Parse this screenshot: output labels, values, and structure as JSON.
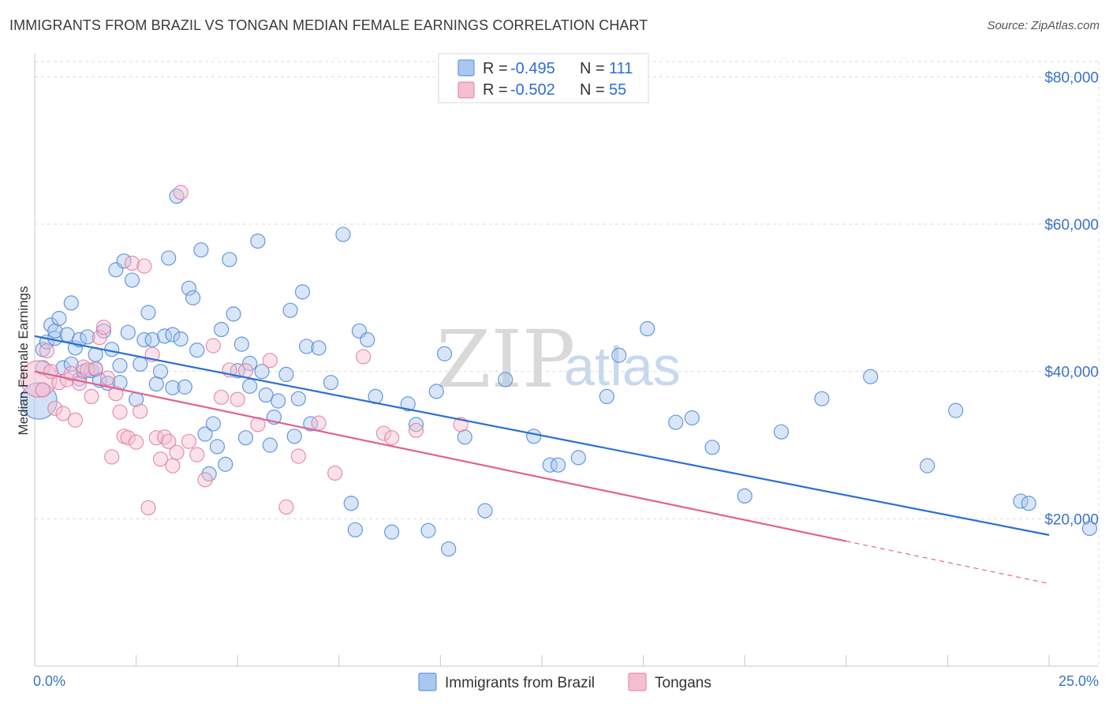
{
  "title": "IMMIGRANTS FROM BRAZIL VS TONGAN MEDIAN FEMALE EARNINGS CORRELATION CHART",
  "source": "Source: ZipAtlas.com",
  "watermark": {
    "part1": "ZIP",
    "part2": "atlas"
  },
  "legend": {
    "r_label": "R =",
    "n_label": "N =",
    "series": [
      {
        "r": "-0.495",
        "n": "111"
      },
      {
        "r": "-0.502",
        "n": "55"
      }
    ]
  },
  "colors": {
    "brazil_fill": "#a9c8f0",
    "brazil_stroke": "#4f87d6",
    "brazil_line": "#2a70d2",
    "tongan_fill": "#f6bfd0",
    "tongan_stroke": "#e27c9f",
    "tongan_line": "#e0628f"
  },
  "chart_data": {
    "type": "scatter",
    "title": "IMMIGRANTS FROM BRAZIL VS TONGAN MEDIAN FEMALE EARNINGS CORRELATION CHART",
    "xlabel": "",
    "ylabel": "Median Female Earnings",
    "xlim": [
      0,
      25
    ],
    "ylim": [
      0,
      84000
    ],
    "x_tick_labels": {
      "left": "0.0%",
      "right": "25.0%"
    },
    "y_ticks": [
      {
        "value": 20000,
        "label": "$20,000"
      },
      {
        "value": 40000,
        "label": "$40,000"
      },
      {
        "value": 60000,
        "label": "$60,000"
      },
      {
        "value": 80000,
        "label": "$80,000"
      }
    ],
    "series": [
      {
        "name": "Immigrants from Brazil",
        "r": -0.495,
        "n": 111,
        "trend": {
          "x0": 0,
          "y0": 44800,
          "x1": 25,
          "y1": 17800,
          "dashed_from": null
        },
        "points": [
          [
            0.1,
            36000
          ],
          [
            0.2,
            40500
          ],
          [
            0.2,
            43000
          ],
          [
            0.3,
            44000
          ],
          [
            0.4,
            46300
          ],
          [
            0.5,
            44500
          ],
          [
            0.5,
            45500
          ],
          [
            0.6,
            47200
          ],
          [
            0.7,
            40500
          ],
          [
            0.8,
            45000
          ],
          [
            0.9,
            41000
          ],
          [
            0.9,
            49300
          ],
          [
            1.0,
            43200
          ],
          [
            1.1,
            44300
          ],
          [
            1.1,
            39000
          ],
          [
            1.2,
            40000
          ],
          [
            1.3,
            44700
          ],
          [
            1.4,
            40100
          ],
          [
            1.5,
            40300
          ],
          [
            1.5,
            42300
          ],
          [
            1.6,
            38800
          ],
          [
            1.7,
            45500
          ],
          [
            1.8,
            38400
          ],
          [
            1.9,
            43000
          ],
          [
            2.0,
            53800
          ],
          [
            2.1,
            40800
          ],
          [
            2.1,
            38500
          ],
          [
            2.2,
            55000
          ],
          [
            2.3,
            45300
          ],
          [
            2.4,
            52400
          ],
          [
            2.5,
            36200
          ],
          [
            2.6,
            41000
          ],
          [
            2.7,
            44300
          ],
          [
            2.8,
            48000
          ],
          [
            2.9,
            44300
          ],
          [
            3.0,
            38300
          ],
          [
            3.1,
            40000
          ],
          [
            3.2,
            44800
          ],
          [
            3.3,
            55400
          ],
          [
            3.4,
            45000
          ],
          [
            3.4,
            37800
          ],
          [
            3.5,
            63800
          ],
          [
            3.6,
            44400
          ],
          [
            3.7,
            37900
          ],
          [
            3.8,
            51300
          ],
          [
            3.9,
            50000
          ],
          [
            4.0,
            42900
          ],
          [
            4.1,
            56500
          ],
          [
            4.2,
            31500
          ],
          [
            4.3,
            26100
          ],
          [
            4.4,
            32900
          ],
          [
            4.5,
            29800
          ],
          [
            4.6,
            45700
          ],
          [
            4.7,
            27400
          ],
          [
            4.8,
            55200
          ],
          [
            4.9,
            47800
          ],
          [
            5.0,
            40100
          ],
          [
            5.1,
            43700
          ],
          [
            5.2,
            31000
          ],
          [
            5.3,
            38000
          ],
          [
            5.3,
            41100
          ],
          [
            5.5,
            57700
          ],
          [
            5.6,
            40000
          ],
          [
            5.7,
            36800
          ],
          [
            5.8,
            30000
          ],
          [
            5.9,
            33800
          ],
          [
            6.0,
            36000
          ],
          [
            6.2,
            39600
          ],
          [
            6.3,
            48300
          ],
          [
            6.4,
            31200
          ],
          [
            6.5,
            36300
          ],
          [
            6.6,
            50800
          ],
          [
            6.7,
            43400
          ],
          [
            6.8,
            32900
          ],
          [
            7.0,
            43200
          ],
          [
            7.3,
            38500
          ],
          [
            7.6,
            58600
          ],
          [
            7.8,
            22100
          ],
          [
            7.9,
            18500
          ],
          [
            8.0,
            45500
          ],
          [
            8.2,
            44300
          ],
          [
            8.4,
            36600
          ],
          [
            8.8,
            18200
          ],
          [
            9.2,
            35600
          ],
          [
            9.4,
            32800
          ],
          [
            9.7,
            18400
          ],
          [
            9.9,
            37300
          ],
          [
            10.1,
            42400
          ],
          [
            10.2,
            15900
          ],
          [
            10.6,
            31100
          ],
          [
            11.1,
            21100
          ],
          [
            11.6,
            38900
          ],
          [
            12.3,
            31200
          ],
          [
            12.7,
            27300
          ],
          [
            12.9,
            27300
          ],
          [
            13.4,
            28300
          ],
          [
            14.1,
            36600
          ],
          [
            14.4,
            42200
          ],
          [
            15.1,
            45800
          ],
          [
            15.8,
            33100
          ],
          [
            16.2,
            33700
          ],
          [
            16.7,
            29700
          ],
          [
            17.5,
            23100
          ],
          [
            18.4,
            31800
          ],
          [
            19.4,
            36300
          ],
          [
            20.6,
            39300
          ],
          [
            22.0,
            27200
          ],
          [
            22.7,
            34700
          ],
          [
            24.3,
            22400
          ],
          [
            26.0,
            18700
          ],
          [
            24.5,
            22100
          ]
        ]
      },
      {
        "name": "Tongans",
        "r": -0.502,
        "n": 55,
        "trend": {
          "x0": 0,
          "y0": 40000,
          "x1": 25,
          "y1": 11200,
          "dashed_from": 20.0
        },
        "points": [
          [
            0.1,
            39000
          ],
          [
            0.2,
            37500
          ],
          [
            0.3,
            42800
          ],
          [
            0.4,
            40000
          ],
          [
            0.5,
            35000
          ],
          [
            0.6,
            38500
          ],
          [
            0.7,
            34300
          ],
          [
            0.8,
            38900
          ],
          [
            0.9,
            39700
          ],
          [
            1.0,
            33400
          ],
          [
            1.1,
            38400
          ],
          [
            1.2,
            40600
          ],
          [
            1.3,
            40200
          ],
          [
            1.4,
            36600
          ],
          [
            1.5,
            40400
          ],
          [
            1.6,
            44600
          ],
          [
            1.7,
            46000
          ],
          [
            1.8,
            39100
          ],
          [
            1.9,
            28400
          ],
          [
            2.0,
            37000
          ],
          [
            2.1,
            34500
          ],
          [
            2.2,
            31200
          ],
          [
            2.3,
            31000
          ],
          [
            2.4,
            54700
          ],
          [
            2.5,
            30400
          ],
          [
            2.6,
            34600
          ],
          [
            2.7,
            54300
          ],
          [
            2.8,
            21500
          ],
          [
            2.9,
            42300
          ],
          [
            3.0,
            31000
          ],
          [
            3.1,
            28100
          ],
          [
            3.2,
            31100
          ],
          [
            3.3,
            30500
          ],
          [
            3.4,
            27200
          ],
          [
            3.5,
            29000
          ],
          [
            3.6,
            64300
          ],
          [
            3.8,
            30500
          ],
          [
            4.0,
            28700
          ],
          [
            4.2,
            25300
          ],
          [
            4.4,
            43500
          ],
          [
            4.6,
            36500
          ],
          [
            4.8,
            40200
          ],
          [
            5.0,
            36200
          ],
          [
            5.2,
            40100
          ],
          [
            5.5,
            32800
          ],
          [
            5.8,
            41500
          ],
          [
            6.2,
            21600
          ],
          [
            6.5,
            28500
          ],
          [
            7.0,
            33000
          ],
          [
            7.4,
            26200
          ],
          [
            8.1,
            42000
          ],
          [
            8.6,
            31600
          ],
          [
            8.8,
            31000
          ],
          [
            9.4,
            32000
          ],
          [
            10.5,
            32800
          ]
        ]
      }
    ]
  },
  "bottom_legend": [
    {
      "label": "Immigrants from Brazil"
    },
    {
      "label": "Tongans"
    }
  ]
}
